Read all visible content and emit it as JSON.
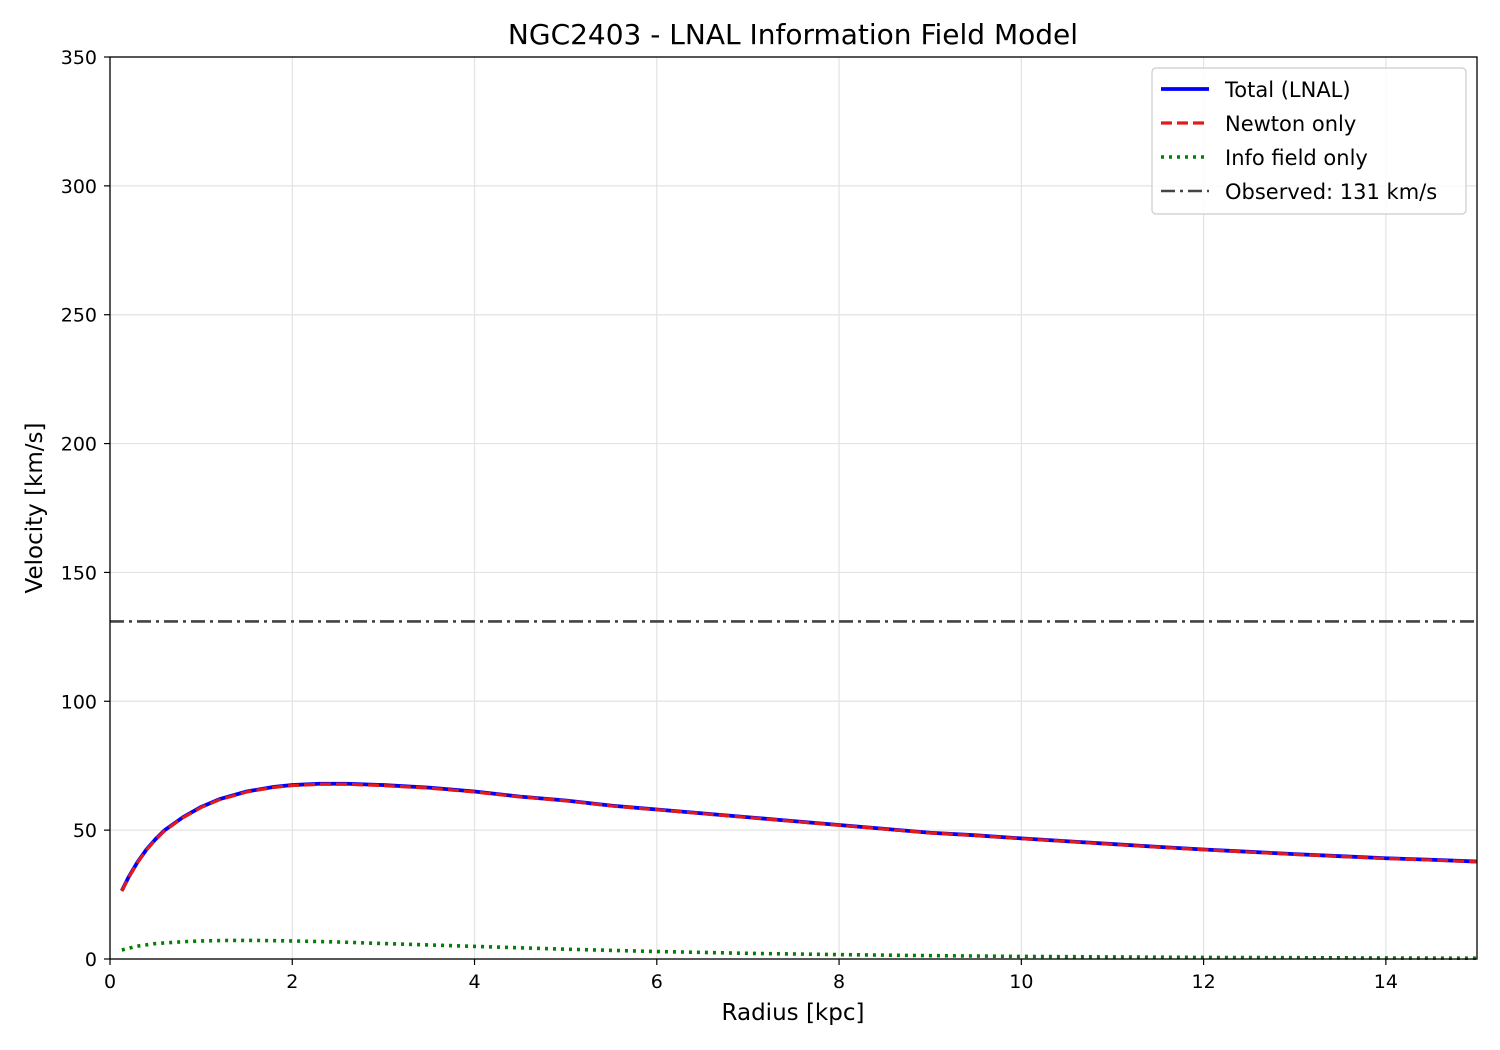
{
  "chart_data": {
    "type": "line",
    "title": "NGC2403 - LNAL Information Field Model",
    "xlabel": "Radius [kpc]",
    "ylabel": "Velocity [km/s]",
    "xlim": [
      0,
      15
    ],
    "ylim": [
      0,
      350
    ],
    "xticks": [
      0,
      2,
      4,
      6,
      8,
      10,
      12,
      14
    ],
    "yticks": [
      0,
      50,
      100,
      150,
      200,
      250,
      300,
      350
    ],
    "grid": true,
    "legend_position": "top-right",
    "series": [
      {
        "name": "Total (LNAL)",
        "color": "#0000ff",
        "style": "solid",
        "x": [
          0.13,
          0.2,
          0.3,
          0.4,
          0.5,
          0.6,
          0.8,
          1.0,
          1.2,
          1.5,
          1.8,
          2.0,
          2.3,
          2.6,
          3.0,
          3.5,
          4.0,
          4.5,
          5.0,
          5.5,
          6.0,
          6.5,
          7.0,
          7.5,
          8.0,
          8.5,
          9.0,
          9.5,
          10.0,
          10.5,
          11.0,
          11.5,
          12.0,
          12.5,
          13.0,
          13.5,
          14.0,
          14.5,
          15.0
        ],
        "y": [
          26.5,
          31.5,
          37.5,
          42.5,
          46.5,
          50.0,
          55.0,
          59.0,
          62.0,
          65.0,
          66.8,
          67.5,
          68.0,
          68.0,
          67.5,
          66.5,
          65.0,
          63.0,
          61.5,
          59.5,
          58.0,
          56.5,
          55.0,
          53.5,
          52.0,
          50.5,
          49.0,
          48.0,
          46.8,
          45.7,
          44.6,
          43.5,
          42.5,
          41.6,
          40.7,
          39.9,
          39.1,
          38.5,
          37.8
        ]
      },
      {
        "name": "Newton only",
        "color": "#e31a1c",
        "style": "dashed",
        "x": [
          0.13,
          0.2,
          0.3,
          0.4,
          0.5,
          0.6,
          0.8,
          1.0,
          1.2,
          1.5,
          1.8,
          2.0,
          2.3,
          2.6,
          3.0,
          3.5,
          4.0,
          4.5,
          5.0,
          5.5,
          6.0,
          6.5,
          7.0,
          7.5,
          8.0,
          8.5,
          9.0,
          9.5,
          10.0,
          10.5,
          11.0,
          11.5,
          12.0,
          12.5,
          13.0,
          13.5,
          14.0,
          14.5,
          15.0
        ],
        "y": [
          26.3,
          31.3,
          37.3,
          42.3,
          46.3,
          49.8,
          54.8,
          58.8,
          61.8,
          64.8,
          66.6,
          67.3,
          67.8,
          67.8,
          67.3,
          66.3,
          64.8,
          62.9,
          61.4,
          59.4,
          57.9,
          56.4,
          54.9,
          53.4,
          51.9,
          50.4,
          48.9,
          47.9,
          46.7,
          45.6,
          44.5,
          43.4,
          42.4,
          41.5,
          40.6,
          39.8,
          39.0,
          38.4,
          37.7
        ]
      },
      {
        "name": "Info field only",
        "color": "#008000",
        "style": "dotted",
        "x": [
          0.13,
          0.3,
          0.5,
          0.8,
          1.0,
          1.3,
          1.6,
          2.0,
          2.5,
          3.0,
          4.0,
          5.0,
          6.0,
          7.0,
          8.0,
          9.0,
          10.0,
          11.0,
          12.0,
          13.0,
          14.0,
          15.0
        ],
        "y": [
          3.5,
          5.0,
          6.0,
          6.7,
          7.0,
          7.2,
          7.2,
          7.0,
          6.6,
          6.0,
          4.9,
          3.8,
          2.9,
          2.2,
          1.7,
          1.3,
          1.0,
          0.8,
          0.6,
          0.5,
          0.4,
          0.3
        ]
      },
      {
        "name": "Observed: 131 km/s",
        "color": "#444444",
        "style": "dashdot",
        "value": 131
      }
    ]
  }
}
